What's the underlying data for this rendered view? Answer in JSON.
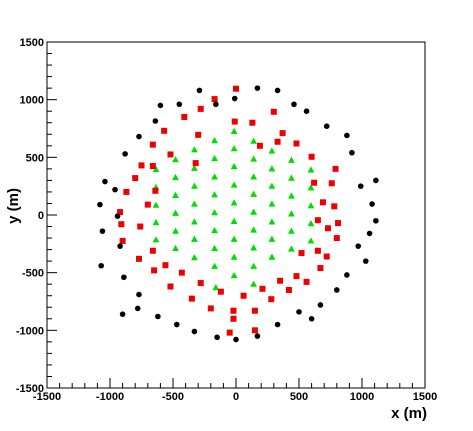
{
  "chart_data": {
    "type": "scatter",
    "title": "",
    "xlabel": "x (m)",
    "ylabel": "y (m)",
    "xlim": [
      -1500,
      1500
    ],
    "ylim": [
      -1500,
      1500
    ],
    "x_ticks": [
      -1500,
      -1000,
      -500,
      0,
      500,
      1000,
      1500
    ],
    "y_ticks": [
      -1500,
      -1000,
      -500,
      0,
      500,
      1000,
      1500
    ],
    "x_tick_labels": [
      "-1500",
      "-1000",
      "-500",
      "0",
      "500",
      "1000",
      "1500"
    ],
    "y_tick_labels": [
      "-1500",
      "-1000",
      "-500",
      "0",
      "500",
      "1000",
      "1500"
    ],
    "grid": false,
    "legend": "none",
    "series": [
      {
        "marker": "triangle",
        "color": "#00dd00",
        "points": [
          [
            -15,
            725
          ],
          [
            -15,
            575
          ],
          [
            -15,
            420
          ],
          [
            -15,
            260
          ],
          [
            -15,
            105
          ],
          [
            -15,
            -55
          ],
          [
            -15,
            -210
          ],
          [
            -15,
            -365
          ],
          [
            -15,
            -525
          ],
          [
            140,
            640
          ],
          [
            140,
            485
          ],
          [
            140,
            330
          ],
          [
            140,
            180
          ],
          [
            140,
            25
          ],
          [
            140,
            -130
          ],
          [
            140,
            -285
          ],
          [
            140,
            -445
          ],
          [
            -170,
            645
          ],
          [
            -170,
            490
          ],
          [
            -170,
            330
          ],
          [
            -170,
            175
          ],
          [
            -170,
            20
          ],
          [
            -170,
            -135
          ],
          [
            -170,
            -290
          ],
          [
            -170,
            -445
          ],
          [
            285,
            555
          ],
          [
            285,
            400
          ],
          [
            285,
            250
          ],
          [
            285,
            95
          ],
          [
            285,
            -60
          ],
          [
            285,
            -210
          ],
          [
            285,
            -365
          ],
          [
            -330,
            565
          ],
          [
            -330,
            405
          ],
          [
            -330,
            250
          ],
          [
            -330,
            95
          ],
          [
            -330,
            -60
          ],
          [
            -330,
            -210
          ],
          [
            -330,
            -370
          ],
          [
            440,
            475
          ],
          [
            440,
            320
          ],
          [
            440,
            165
          ],
          [
            440,
            10
          ],
          [
            440,
            -140
          ],
          [
            440,
            -295
          ],
          [
            -480,
            480
          ],
          [
            -480,
            325
          ],
          [
            -480,
            170
          ],
          [
            -480,
            15
          ],
          [
            -480,
            -140
          ],
          [
            -480,
            -290
          ],
          [
            595,
            390
          ],
          [
            595,
            235
          ],
          [
            595,
            80
          ],
          [
            595,
            -75
          ],
          [
            595,
            -225
          ],
          [
            -635,
            395
          ],
          [
            -635,
            240
          ],
          [
            -635,
            85
          ],
          [
            -635,
            -65
          ],
          [
            -635,
            -215
          ],
          [
            -160,
            -630
          ],
          [
            140,
            -600
          ]
        ]
      },
      {
        "marker": "square",
        "color": "#ee0000",
        "points": [
          [
            0,
            1095
          ],
          [
            -170,
            1005
          ],
          [
            -280,
            920
          ],
          [
            -410,
            850
          ],
          [
            -570,
            730
          ],
          [
            -660,
            610
          ],
          [
            -750,
            430
          ],
          [
            -800,
            320
          ],
          [
            -870,
            200
          ],
          [
            -920,
            25
          ],
          [
            -910,
            -80
          ],
          [
            -900,
            -225
          ],
          [
            -770,
            -380
          ],
          [
            -650,
            -480
          ],
          [
            -520,
            -620
          ],
          [
            -350,
            -725
          ],
          [
            -200,
            -810
          ],
          [
            -20,
            -900
          ],
          [
            150,
            -830
          ],
          [
            280,
            -730
          ],
          [
            420,
            -650
          ],
          [
            560,
            -580
          ],
          [
            670,
            -460
          ],
          [
            720,
            -360
          ],
          [
            800,
            -200
          ],
          [
            810,
            -70
          ],
          [
            780,
            75
          ],
          [
            760,
            275
          ],
          [
            790,
            400
          ],
          [
            600,
            505
          ],
          [
            480,
            620
          ],
          [
            370,
            710
          ],
          [
            300,
            895
          ],
          [
            130,
            800
          ],
          [
            -10,
            810
          ],
          [
            -300,
            695
          ],
          [
            -320,
            450
          ],
          [
            -520,
            525
          ],
          [
            -660,
            425
          ],
          [
            -640,
            210
          ],
          [
            -700,
            90
          ],
          [
            -760,
            -100
          ],
          [
            -660,
            -310
          ],
          [
            -560,
            -435
          ],
          [
            -430,
            -500
          ],
          [
            -280,
            -590
          ],
          [
            -120,
            -665
          ],
          [
            60,
            -700
          ],
          [
            210,
            -640
          ],
          [
            350,
            -570
          ],
          [
            480,
            -530
          ],
          [
            520,
            -330
          ],
          [
            650,
            -310
          ],
          [
            730,
            -115
          ],
          [
            650,
            -45
          ],
          [
            690,
            110
          ],
          [
            620,
            280
          ],
          [
            330,
            635
          ],
          [
            190,
            600
          ],
          [
            -50,
            -1020
          ],
          [
            -20,
            -830
          ],
          [
            150,
            -1000
          ]
        ]
      },
      {
        "marker": "circle",
        "color": "#000000",
        "points": [
          [
            -290,
            1080
          ],
          [
            -450,
            960
          ],
          [
            -640,
            815
          ],
          [
            -770,
            680
          ],
          [
            -880,
            530
          ],
          [
            -1040,
            290
          ],
          [
            -960,
            220
          ],
          [
            -1080,
            90
          ],
          [
            -940,
            -10
          ],
          [
            -1060,
            -140
          ],
          [
            -920,
            -270
          ],
          [
            -1070,
            -440
          ],
          [
            -890,
            -540
          ],
          [
            -770,
            -690
          ],
          [
            -780,
            -810
          ],
          [
            -620,
            -880
          ],
          [
            -470,
            -950
          ],
          [
            -330,
            -1010
          ],
          [
            -150,
            -1060
          ],
          [
            0,
            -1080
          ],
          [
            170,
            -1050
          ],
          [
            330,
            -950
          ],
          [
            500,
            -840
          ],
          [
            670,
            -780
          ],
          [
            800,
            -650
          ],
          [
            880,
            -520
          ],
          [
            1030,
            -400
          ],
          [
            970,
            -270
          ],
          [
            1060,
            -160
          ],
          [
            1110,
            -50
          ],
          [
            1080,
            95
          ],
          [
            1110,
            300
          ],
          [
            990,
            250
          ],
          [
            920,
            540
          ],
          [
            880,
            690
          ],
          [
            720,
            770
          ],
          [
            560,
            900
          ],
          [
            460,
            960
          ],
          [
            330,
            1080
          ],
          [
            170,
            1100
          ],
          [
            -160,
            960
          ],
          [
            -600,
            950
          ],
          [
            -10,
            1010
          ],
          [
            -900,
            -860
          ],
          [
            600,
            -900
          ]
        ]
      }
    ]
  },
  "style": {
    "frame_color": "#000000",
    "background": "#ffffff"
  }
}
